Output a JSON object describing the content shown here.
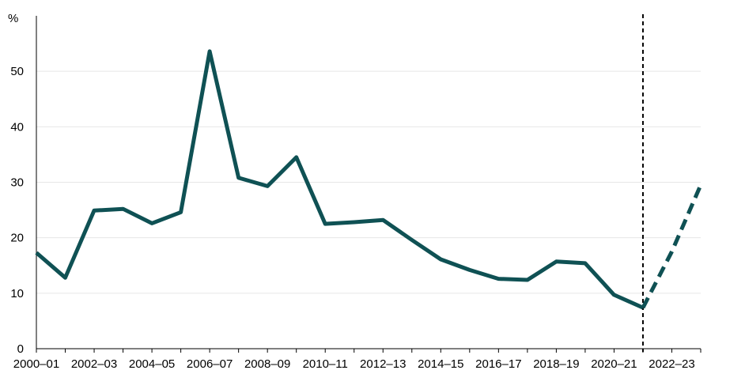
{
  "chart_data": {
    "type": "line",
    "title": "",
    "xlabel": "",
    "ylabel": "%",
    "ylim": [
      0,
      60
    ],
    "yticks": [
      0,
      10,
      20,
      30,
      40,
      50
    ],
    "categories": [
      "2000–01",
      "2001–02",
      "2002–03",
      "2003–04",
      "2004–05",
      "2005–06",
      "2006–07",
      "2007–08",
      "2008–09",
      "2009–10",
      "2010–11",
      "2011–12",
      "2012–13",
      "2013–14",
      "2014–15",
      "2015–16",
      "2016–17",
      "2017–18",
      "2018–19",
      "2019–20",
      "2020–21",
      "2021–22",
      "2022–23",
      "2023–24"
    ],
    "xtick_labels": [
      "2000–01",
      "2002–03",
      "2004–05",
      "2006–07",
      "2008–09",
      "2010–11",
      "2012–13",
      "2014–15",
      "2016–17",
      "2018–19",
      "2020–21",
      "2022–23"
    ],
    "series": [
      {
        "style": "solid",
        "color": "#0f5154",
        "x": [
          "2000–01",
          "2001–02",
          "2002–03",
          "2003–04",
          "2004–05",
          "2005–06",
          "2006–07",
          "2007–08",
          "2008–09",
          "2009–10",
          "2010–11",
          "2011–12",
          "2012–13",
          "2013–14",
          "2014–15",
          "2015–16",
          "2016–17",
          "2017–18",
          "2018–19",
          "2019–20",
          "2020–21",
          "2021–22"
        ],
        "values": [
          17.3,
          12.8,
          24.9,
          25.2,
          22.6,
          24.6,
          53.6,
          30.8,
          29.3,
          34.5,
          22.5,
          22.8,
          23.2,
          19.6,
          16.1,
          14.2,
          12.6,
          12.4,
          15.7,
          15.4,
          9.7,
          7.4
        ]
      },
      {
        "style": "dashed",
        "color": "#0f5154",
        "x": [
          "2021–22",
          "2022–23",
          "2023–24"
        ],
        "values": [
          7.4,
          17.5,
          29.5
        ]
      }
    ],
    "vline": {
      "at": "2021–22",
      "style": "dashed",
      "color": "#000000"
    }
  }
}
